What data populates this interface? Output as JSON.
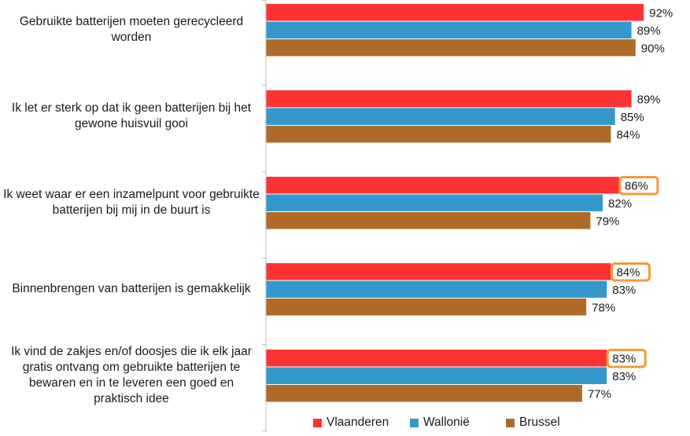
{
  "chart_data": {
    "type": "bar",
    "orientation": "horizontal",
    "categories": [
      "Gebruikte batterijen moeten gerecycleerd worden",
      "Ik let er sterk op dat ik geen batterijen bij het gewone huisvuil gooi",
      "Ik weet waar er een inzamelpunt voor gebruikte batterijen bij mij in de buurt is",
      "Binnenbrengen van batterijen is gemakkelijk",
      "Ik vind de zakjes en/of doosjes die ik elk jaar gratis ontvang om gebruikte batterijen te bewaren en in te leveren een goed en praktisch idee"
    ],
    "series": [
      {
        "name": "Vlaanderen",
        "color": "#ff3333",
        "values": [
          92,
          89,
          86,
          84,
          83
        ],
        "labels": [
          "92%",
          "89%",
          "86%",
          "84%",
          "83%"
        ]
      },
      {
        "name": "Wallonië",
        "color": "#3399cc",
        "values": [
          89,
          85,
          82,
          83,
          83
        ],
        "labels": [
          "89%",
          "85%",
          "82%",
          "83%",
          "83%"
        ]
      },
      {
        "name": "Brussel",
        "color": "#b06a28",
        "values": [
          90,
          84,
          79,
          78,
          77
        ],
        "labels": [
          "90%",
          "84%",
          "79%",
          "78%",
          "77%"
        ]
      }
    ],
    "highlighted_labels": [
      {
        "series": "Vlaanderen",
        "category_index": 2
      },
      {
        "series": "Vlaanderen",
        "category_index": 3
      },
      {
        "series": "Vlaanderen",
        "category_index": 4
      }
    ],
    "highlight_color": "#f39a3a",
    "xlim": [
      0,
      100
    ],
    "grid": false,
    "legend_position": "bottom"
  }
}
